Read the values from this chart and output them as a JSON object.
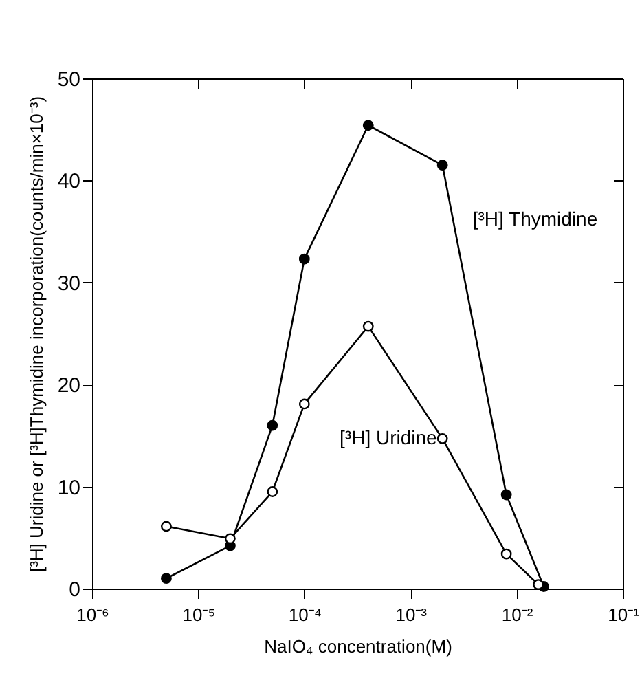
{
  "chart_data": {
    "type": "line",
    "xlabel": "NaIO₄ concentration(M)",
    "ylabel": "[³H] Uridine or [³H]Thymidine  incorporation(counts/min×10⁻³)",
    "log": "x",
    "xlim": [
      1e-06,
      0.1
    ],
    "xticks": [
      {
        "value": 1e-06,
        "label": "10⁻⁶"
      },
      {
        "value": 1e-05,
        "label": "10⁻⁵"
      },
      {
        "value": 0.0001,
        "label": "10⁻⁴"
      },
      {
        "value": 0.001,
        "label": "10⁻³"
      },
      {
        "value": 0.01,
        "label": "10⁻²"
      },
      {
        "value": 0.1,
        "label": "10⁻¹"
      }
    ],
    "ylim": [
      0,
      50
    ],
    "yticks": [
      0,
      10,
      20,
      30,
      40,
      50
    ],
    "marker": "circle",
    "line_style": "solid",
    "series": [
      {
        "name": "[³H] Thymidine",
        "color": "#000000",
        "x": [
          5e-06,
          2e-05,
          5e-05,
          0.0001,
          0.0004,
          0.002,
          0.008,
          0.018
        ],
        "values": [
          1,
          4.2,
          16,
          32.3,
          45.4,
          41.5,
          9.2,
          0.2
        ]
      },
      {
        "name": "[³H] Uridine",
        "color": "#000000",
        "x": [
          5e-06,
          2e-05,
          5e-05,
          0.0001,
          0.0004,
          0.002,
          0.008,
          0.016
        ],
        "values": [
          6.1,
          4.9,
          9.5,
          18.1,
          25.7,
          14.7,
          3.4,
          0.4
        ]
      }
    ]
  }
}
